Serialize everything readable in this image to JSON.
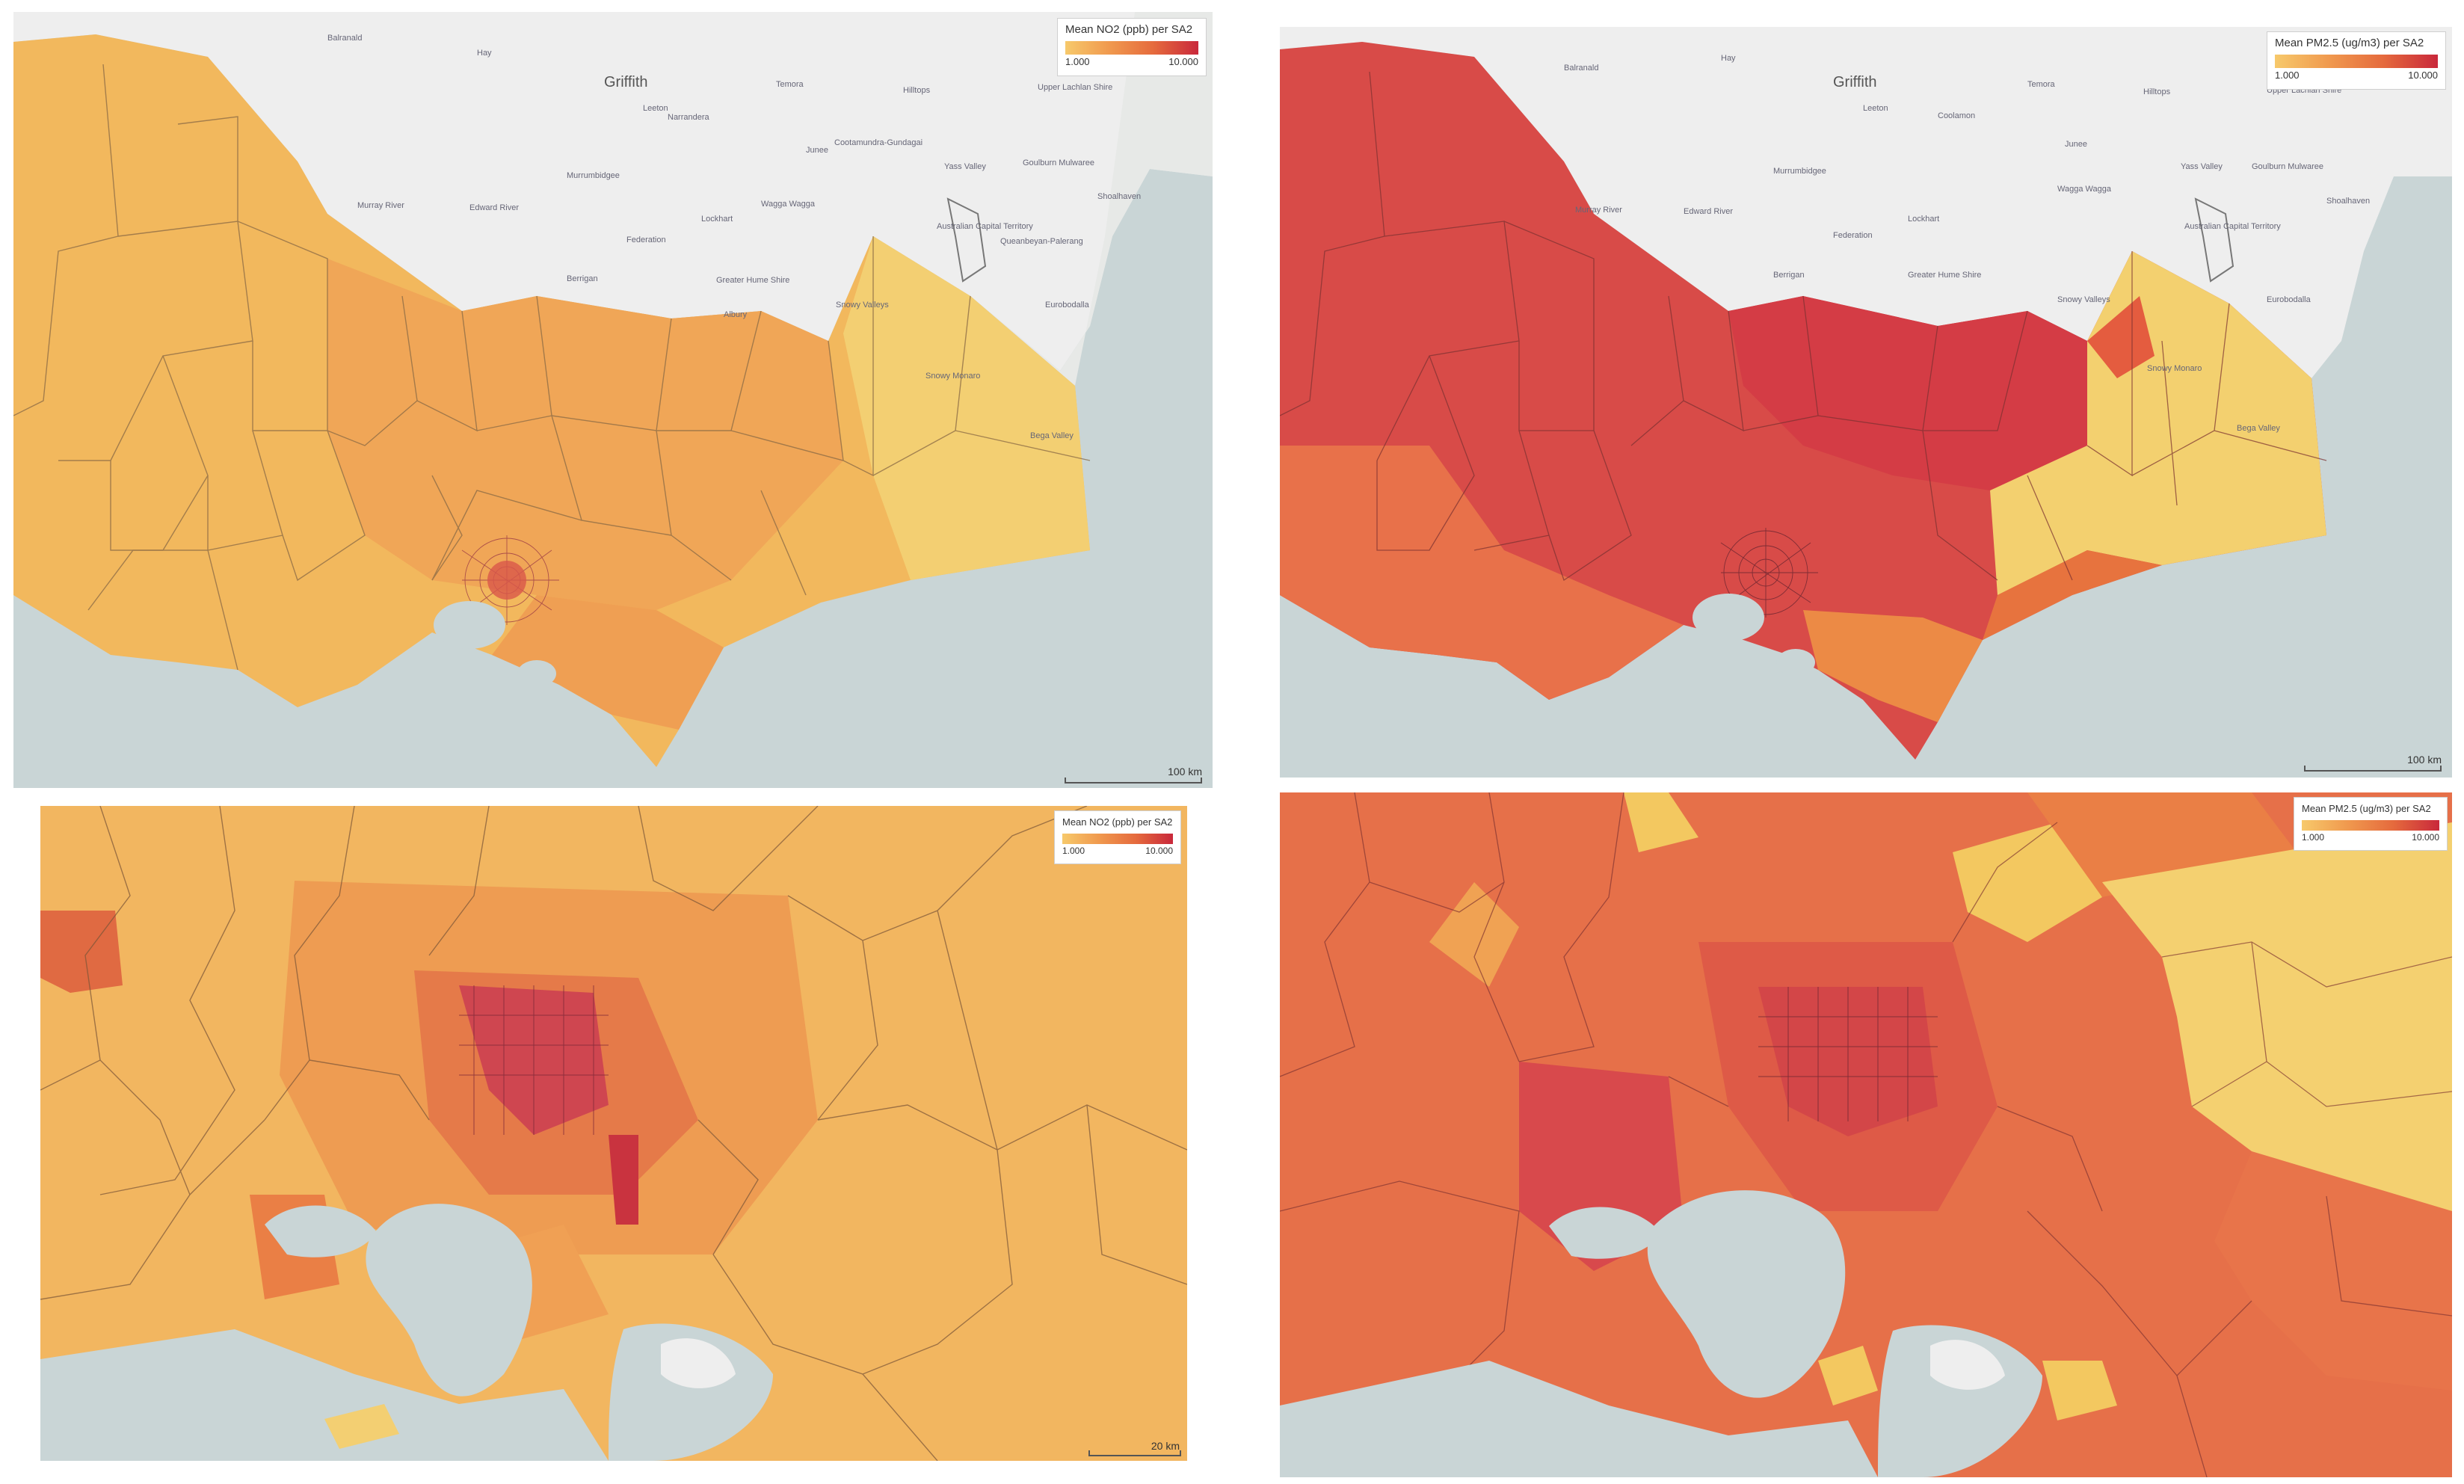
{
  "panels": {
    "top_left": {
      "legend_title": "Mean NO2 (ppb) per SA2",
      "legend_min": "1.000",
      "legend_max": "10.000",
      "scale_label": "100 km",
      "places": [
        "Balranald",
        "Hay",
        "Griffith",
        "Leeton",
        "Narrandera",
        "Temora",
        "Hilltops",
        "Upper Lachlan Shire",
        "Murrumbidgee",
        "Junee",
        "Cootamundra-Gundagai",
        "Yass Valley",
        "Goulburn Mulwaree",
        "Murray River",
        "Edward River",
        "Wagga Wagga",
        "Lockhart",
        "Federation",
        "Berrigan",
        "Greater Hume Shire",
        "Albury",
        "Snowy Valleys",
        "Snowy Monaro",
        "Bega Valley",
        "Queanbeyan-Palerang",
        "Shoalhaven",
        "Eurobodalla",
        "Australian Capital Territory"
      ]
    },
    "top_right": {
      "legend_title": "Mean PM2.5 (ug/m3) per SA2",
      "legend_min": "1.000",
      "legend_max": "10.000",
      "scale_label": "100 km",
      "places": [
        "Balranald",
        "Hay",
        "Griffith",
        "Leeton",
        "Coolamon",
        "Temora",
        "Hilltops",
        "Upper Lachlan Shire",
        "Murrumbidgee",
        "Junee",
        "Wagga Wagga",
        "Yass Valley",
        "Goulburn Mulwaree",
        "Murray River",
        "Edward River",
        "Lockhart",
        "Federation",
        "Berrigan",
        "Greater Hume Shire",
        "Snowy Valleys",
        "Snowy Monaro",
        "Bega Valley",
        "Shoalhaven",
        "Eurobodalla",
        "Australian Capital Territory"
      ]
    },
    "bottom_left": {
      "legend_title": "Mean NO2 (ppb) per SA2",
      "legend_min": "1.000",
      "legend_max": "10.000",
      "scale_label": "20 km"
    },
    "bottom_right": {
      "legend_title": "Mean PM2.5 (ug/m3) per SA2",
      "legend_min": "1.000",
      "legend_max": "10.000"
    }
  },
  "colors": {
    "scale_low": "#f7c96b",
    "scale_mid": "#ec8a47",
    "scale_high": "#c9283b",
    "water": "#c9d5d6",
    "land_outside": "#eeeeee"
  }
}
